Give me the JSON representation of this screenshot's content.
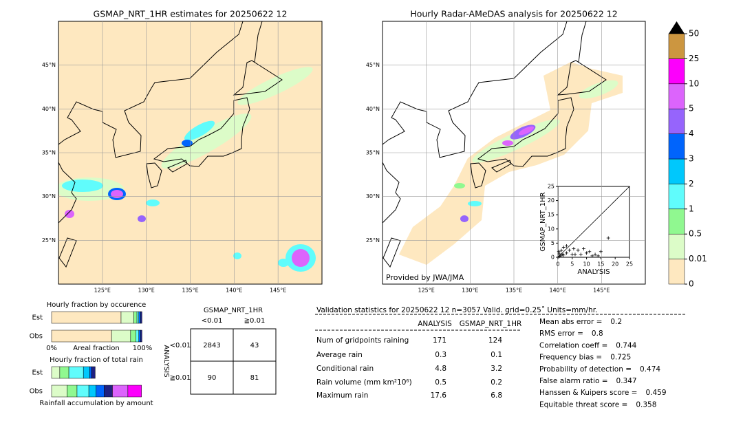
{
  "maps": [
    {
      "title": "GSMAP_NRT_1HR estimates for 20250622 12",
      "xlim": [
        120,
        150
      ],
      "ylim": [
        20,
        50
      ],
      "xticks": [
        {
          "value": 125,
          "label": "125°E"
        },
        {
          "value": 130,
          "label": "130°E"
        },
        {
          "value": 135,
          "label": "135°E"
        },
        {
          "value": 140,
          "label": "140°E"
        },
        {
          "value": 145,
          "label": "145°E"
        }
      ],
      "yticks": [
        {
          "value": 25,
          "label": "25°N"
        },
        {
          "value": 30,
          "label": "30°N"
        },
        {
          "value": 35,
          "label": "35°N"
        },
        {
          "value": 40,
          "label": "40°N"
        },
        {
          "value": 45,
          "label": "45°N"
        }
      ]
    },
    {
      "title": "Hourly Radar-AMeDAS analysis for 20250622 12",
      "credit": "Provided by JWA/JMA",
      "xlim": [
        120,
        150
      ],
      "ylim": [
        20,
        50
      ],
      "xticks": [
        {
          "value": 125,
          "label": "125°E"
        },
        {
          "value": 130,
          "label": "130°E"
        },
        {
          "value": 135,
          "label": "135°E"
        },
        {
          "value": 140,
          "label": "140°E"
        },
        {
          "value": 145,
          "label": "145°E"
        }
      ],
      "yticks": [
        {
          "value": 25,
          "label": "25°N"
        },
        {
          "value": 30,
          "label": "30°N"
        },
        {
          "value": 35,
          "label": "35°N"
        },
        {
          "value": 40,
          "label": "40°N"
        },
        {
          "value": 45,
          "label": "45°N"
        }
      ]
    }
  ],
  "chart_data": [
    {
      "type": "colorbar",
      "bounds": [
        0,
        0.01,
        0.5,
        1,
        2,
        3,
        4,
        5,
        10,
        25,
        50
      ],
      "colors": [
        "#fee8c0",
        "#dcfcc8",
        "#90f890",
        "#60fcfc",
        "#00c8fc",
        "#0064fc",
        "#9664fc",
        "#dc64fc",
        "#fc00fc",
        "#cc9640"
      ]
    },
    {
      "type": "scatter",
      "xlabel": "ANALYSIS",
      "ylabel": "GSMAP_NRT_1HR",
      "color": "#000000",
      "xlim": [
        0,
        25
      ],
      "ylim": [
        0,
        25
      ],
      "xticks": [
        0,
        5,
        10,
        15,
        20,
        25
      ],
      "yticks": [
        0,
        5,
        10,
        15,
        20,
        25
      ],
      "x": [
        0.3,
        0.5,
        1,
        1.5,
        2,
        2,
        3,
        3,
        4,
        5,
        5.5,
        6,
        7,
        8,
        9,
        10,
        11,
        12,
        13,
        14,
        15,
        17.6,
        0.5,
        1.2
      ],
      "y": [
        2,
        0.3,
        0.5,
        1,
        0.8,
        3.5,
        1.5,
        4,
        2.5,
        1,
        3,
        1,
        2.5,
        1,
        3,
        1.5,
        2,
        0.5,
        1,
        0.5,
        2,
        6.8,
        1.2,
        2.4
      ]
    },
    {
      "type": "stacked-bar",
      "title": "Hourly fraction by occurence",
      "xlabel": "Areal fraction",
      "categories": [
        "Est",
        "Obs"
      ],
      "xlim": [
        0,
        1
      ],
      "xticks": [
        {
          "value": 0,
          "label": "0%"
        },
        {
          "value": 1,
          "label": "100%"
        }
      ],
      "series": [
        {
          "color": "#fee8c0",
          "values": [
            0.765,
            0.66
          ]
        },
        {
          "color": "#dcfcc8",
          "values": [
            0.14,
            0.21
          ]
        },
        {
          "color": "#90f890",
          "values": [
            0.035,
            0.06
          ]
        },
        {
          "color": "#60fcfc",
          "values": [
            0.02,
            0.03
          ]
        },
        {
          "color": "#0064fc",
          "values": [
            0.02,
            0.02
          ]
        },
        {
          "color": "#202080",
          "values": [
            0.015,
            0.015
          ]
        }
      ]
    },
    {
      "type": "stacked-bar",
      "title": "Hourly fraction of total rain",
      "xlabel": "Rainfall accumulation by amount",
      "categories": [
        "Est",
        "Obs"
      ],
      "xlim": [
        0,
        1
      ],
      "series": [
        {
          "color": "#dcfcc8",
          "values": [
            0.09,
            0.17
          ]
        },
        {
          "color": "#90f890",
          "values": [
            0.1,
            0.11
          ]
        },
        {
          "color": "#60fcfc",
          "values": [
            0.16,
            0.13
          ]
        },
        {
          "color": "#00c8fc",
          "values": [
            0.07,
            0.08
          ]
        },
        {
          "color": "#0064fc",
          "values": [
            0.02,
            0.09
          ]
        },
        {
          "color": "#202080",
          "values": [
            0.04,
            0.09
          ]
        },
        {
          "color": "#dc64fc",
          "values": [
            0,
            0.17
          ]
        },
        {
          "color": "#fc00fc",
          "values": [
            0,
            0.15
          ]
        }
      ]
    }
  ],
  "contingency": {
    "title": "GSMAP_NRT_1HR",
    "columns": [
      "<0.01",
      "≧0.01"
    ],
    "row_title": "ANALYSIS",
    "rows": [
      "<0.01",
      "≧0.01"
    ],
    "cells": [
      [
        2843,
        43
      ],
      [
        90,
        81
      ]
    ]
  },
  "stats": {
    "header": "Validation statistics for 20250622 12  n=3057 Valid. grid=0.25˚ Units=mm/hr.",
    "columns": [
      "ANALYSIS",
      "GSMAP_NRT_1HR"
    ],
    "rows": [
      {
        "label": "Num of gridpoints raining",
        "values": [
          171,
          124
        ]
      },
      {
        "label": "Average rain",
        "values": [
          0.3,
          0.1
        ]
      },
      {
        "label": "Conditional rain",
        "values": [
          4.8,
          3.2
        ]
      },
      {
        "label": "Rain volume (mm km²10⁶)",
        "values": [
          0.5,
          0.2
        ]
      },
      {
        "label": "Maximum rain",
        "values": [
          17.6,
          6.8
        ]
      }
    ],
    "scores": [
      {
        "label": "Mean abs error =",
        "value": 0.2
      },
      {
        "label": "RMS error =",
        "value": 0.8
      },
      {
        "label": "Correlation coeff =",
        "value": 0.744
      },
      {
        "label": "Frequency bias =",
        "value": 0.725
      },
      {
        "label": "Probability of detection =",
        "value": 0.474
      },
      {
        "label": "False alarm ratio =",
        "value": 0.347
      },
      {
        "label": "Hanssen & Kuipers score =",
        "value": 0.459
      },
      {
        "label": "Equitable threat score =",
        "value": 0.358
      }
    ]
  }
}
